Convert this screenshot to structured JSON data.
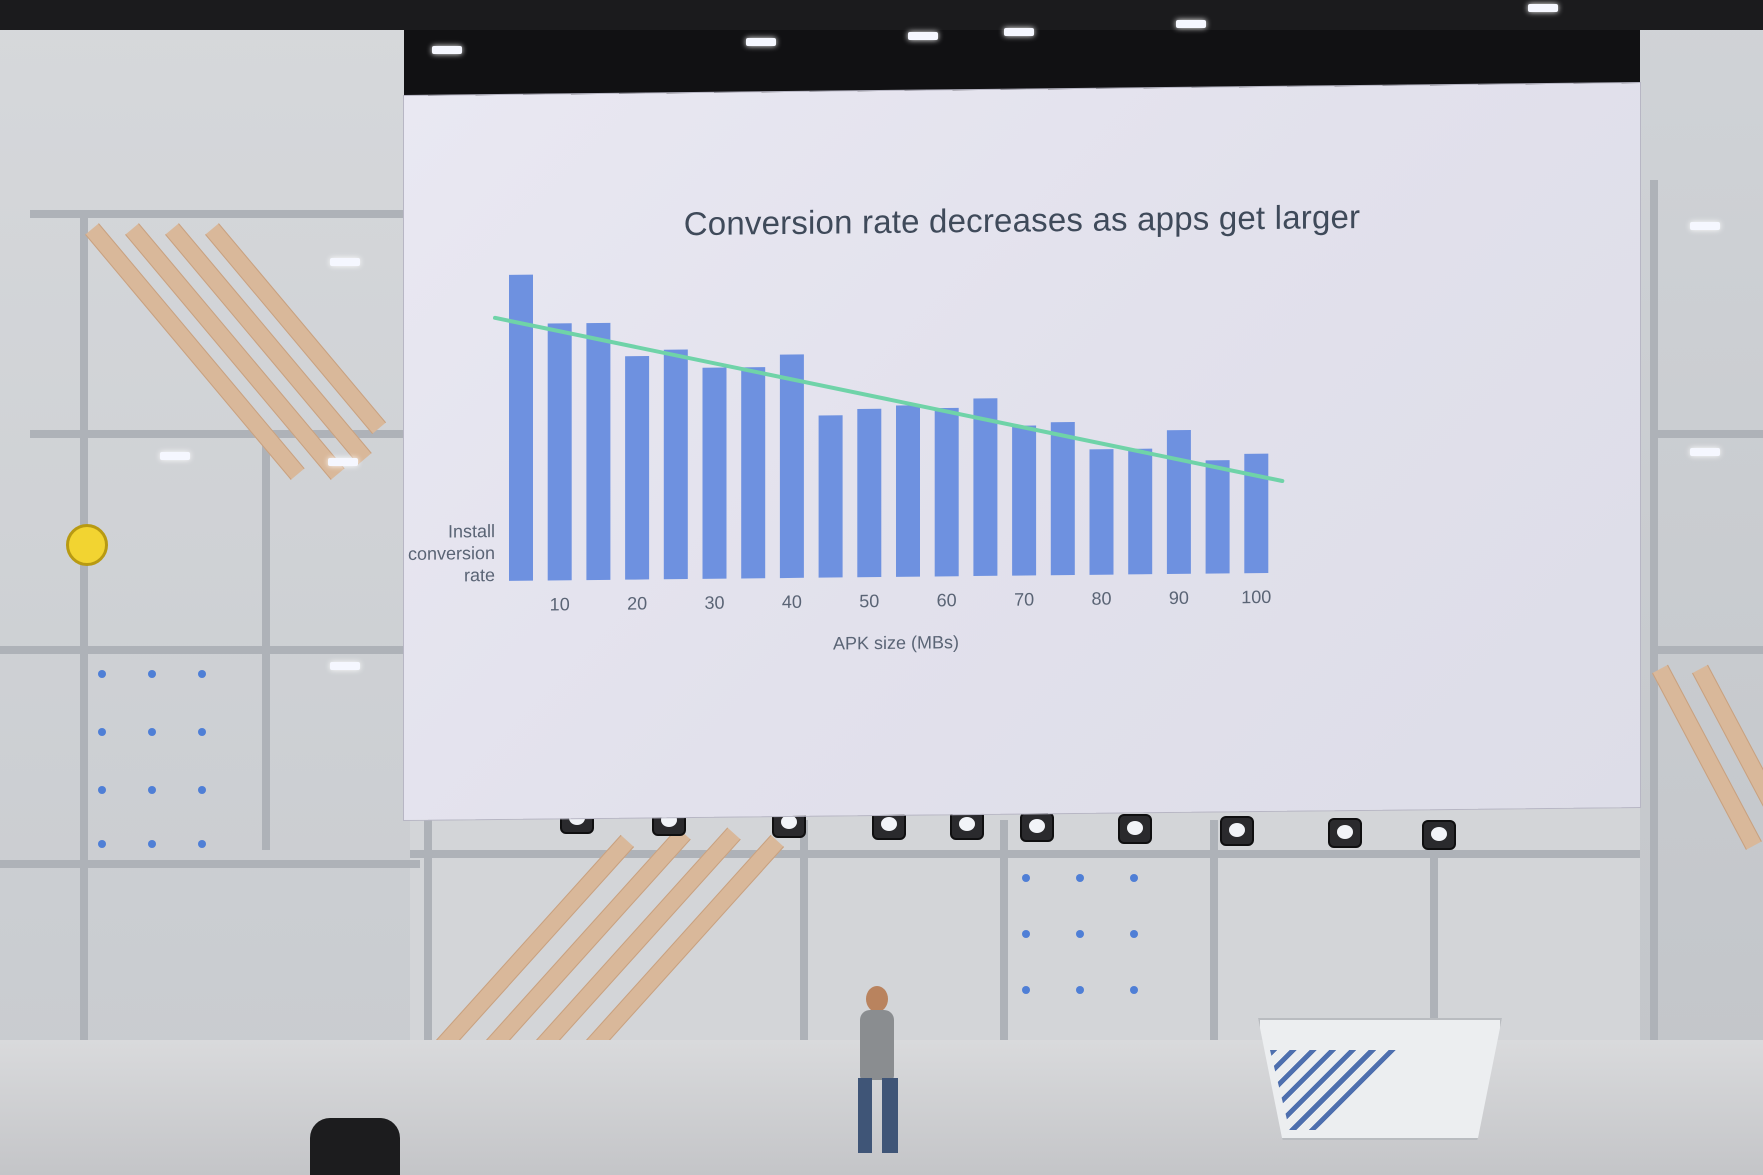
{
  "chart_data": {
    "type": "bar",
    "title": "Conversion rate decreases as apps get larger",
    "xlabel": "APK size (MBs)",
    "ylabel_lines": [
      "Install",
      "conversion",
      "rate"
    ],
    "x_ticks": [
      "10",
      "20",
      "30",
      "40",
      "50",
      "60",
      "70",
      "80",
      "90",
      "100"
    ],
    "values": [
      100,
      84,
      84,
      73,
      75,
      69,
      69,
      73,
      53,
      55,
      56,
      55,
      58,
      49,
      50,
      41,
      41,
      47,
      37,
      39
    ],
    "ylim": [
      0,
      100
    ],
    "trendline": {
      "start": 86,
      "end": 30
    },
    "grid": false,
    "colors": {
      "bar": "#6e91e0",
      "trend": "#6fd3a8",
      "text": "#5a6475",
      "title": "#3f4a5a"
    }
  }
}
